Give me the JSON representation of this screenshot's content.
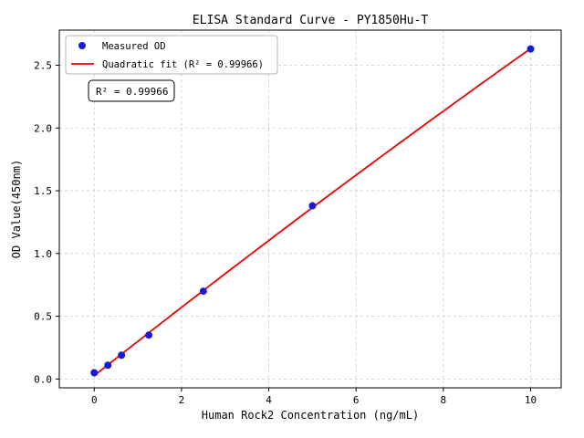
{
  "chart_data": {
    "type": "scatter",
    "title": "ELISA Standard Curve - PY1850Hu-T",
    "xlabel": "Human Rock2 Concentration (ng/mL)",
    "ylabel": "OD Value(450nm)",
    "x": [
      0,
      0.3125,
      0.625,
      1.25,
      2.5,
      5,
      10
    ],
    "y": [
      0.05,
      0.11,
      0.19,
      0.35,
      0.7,
      1.38,
      2.63
    ],
    "series": [
      {
        "name": "Measured OD",
        "type": "scatter",
        "color": "#1a1ad6",
        "marker": "circle-icon"
      },
      {
        "name": "Quadratic fit (R² = 0.99966)",
        "type": "line",
        "color": "#f00000",
        "marker": "line"
      }
    ],
    "annotation": "R² = 0.99966",
    "r_squared": 0.99966,
    "xticks": [
      0,
      2,
      4,
      6,
      8,
      10
    ],
    "xtick_labels": [
      "0",
      "2",
      "4",
      "6",
      "8",
      "10"
    ],
    "yticks": [
      0.0,
      0.5,
      1.0,
      1.5,
      2.0,
      2.5
    ],
    "ytick_labels": [
      "0.0",
      "0.5",
      "1.0",
      "1.5",
      "2.0",
      "2.5"
    ],
    "xlim": [
      -0.8,
      10.7
    ],
    "ylim": [
      -0.07,
      2.78
    ],
    "grid": true,
    "legend_position": "upper left",
    "colors": {
      "grid": "#c9c9c9",
      "axis": "#000000",
      "background": "#ffffff",
      "legend_border": "#b3b3b3",
      "annotation_border": "#000000"
    }
  }
}
